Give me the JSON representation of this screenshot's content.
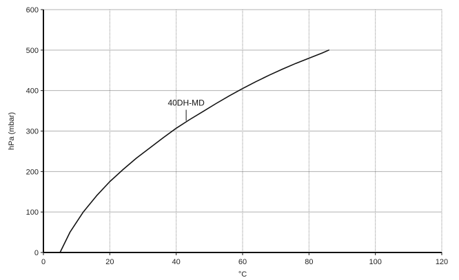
{
  "chart_data": {
    "type": "line",
    "title": "",
    "xlabel": "°C",
    "ylabel": "hPa (mbar)",
    "xlim": [
      0,
      120
    ],
    "ylim": [
      0,
      600
    ],
    "x_ticks": [
      0,
      20,
      40,
      60,
      80,
      100,
      120
    ],
    "y_ticks": [
      0,
      100,
      200,
      300,
      400,
      500,
      600
    ],
    "x_tick_labels": [
      "0",
      "20",
      "40",
      "60",
      "80",
      "100",
      "120"
    ],
    "y_tick_labels": [
      "0",
      "100",
      "200",
      "300",
      "400",
      "500",
      "600"
    ],
    "grid": true,
    "legend": "none",
    "colors": {
      "line": "#111111",
      "grid": "#8a8a8a",
      "axis": "#111111"
    },
    "series": [
      {
        "x": [
          5,
          8,
          12,
          16,
          20,
          24,
          28,
          32,
          36,
          40,
          44,
          48,
          52,
          56,
          60,
          64,
          68,
          72,
          76,
          80,
          84,
          86
        ],
        "y": [
          0,
          50,
          100,
          140,
          175,
          205,
          233,
          258,
          283,
          307,
          328,
          348,
          368,
          387,
          405,
          422,
          438,
          453,
          467,
          480,
          493,
          500
        ]
      }
    ],
    "annotations": [
      {
        "text": "40DH-MD",
        "x": 43,
        "y": 322
      }
    ]
  }
}
